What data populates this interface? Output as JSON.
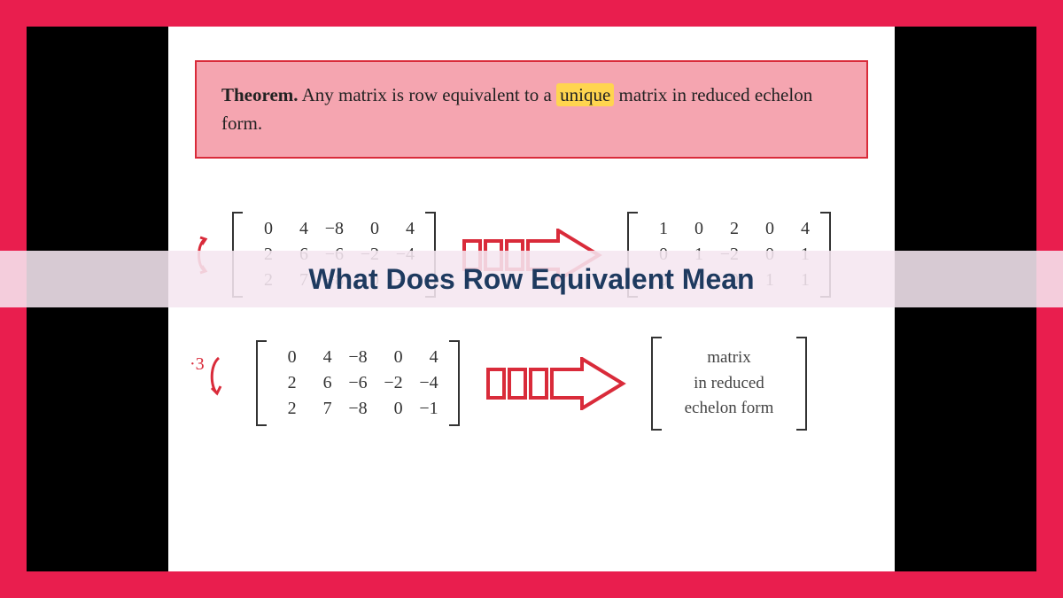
{
  "colors": {
    "outer_border": "#e91e4e",
    "pillarbox": "#000000",
    "page_bg": "#ffffff",
    "theorem_bg": "#f5a5b0",
    "theorem_border": "#d92b3a",
    "highlight_bg": "#ffd54f",
    "arrow_stroke": "#d92b3a",
    "text": "#333333",
    "banner_bg": "rgba(245,230,240,0.88)",
    "banner_text": "#1e3a5f"
  },
  "banner": {
    "title": "What Does Row Equivalent Mean"
  },
  "theorem": {
    "lead": "Theorem.",
    "text_before": "Any matrix is row equivalent to a ",
    "highlight": "unique",
    "text_after": " matrix in reduced echelon form."
  },
  "example1": {
    "op_label": "",
    "left_matrix": {
      "cols": 5,
      "rows": [
        [
          "0",
          "4",
          "−8",
          "0",
          "4"
        ],
        [
          "2",
          "6",
          "−6",
          "−2",
          "−4"
        ],
        [
          "2",
          "7",
          "−8",
          "0",
          "−1"
        ]
      ]
    },
    "right_matrix": {
      "cols": 5,
      "rows": [
        [
          "1",
          "0",
          "2",
          "0",
          "4"
        ],
        [
          "0",
          "1",
          "−2",
          "0",
          "1"
        ],
        [
          "0",
          "0",
          "0",
          "1",
          "1"
        ]
      ]
    }
  },
  "example2": {
    "op_label": "·3",
    "left_matrix": {
      "cols": 5,
      "rows": [
        [
          "0",
          "4",
          "−8",
          "0",
          "4"
        ],
        [
          "2",
          "6",
          "−6",
          "−2",
          "−4"
        ],
        [
          "2",
          "7",
          "−8",
          "0",
          "−1"
        ]
      ]
    },
    "right_text": [
      "matrix",
      "in reduced",
      "echelon form"
    ]
  },
  "arrow_style": {
    "stroke_width": 4,
    "bar_count": 3
  }
}
